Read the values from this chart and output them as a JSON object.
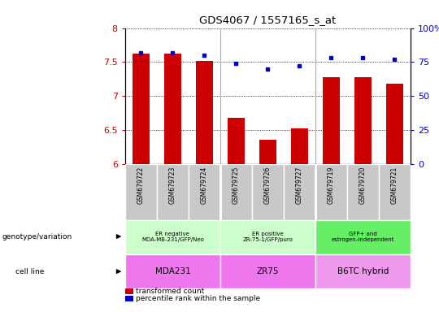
{
  "title": "GDS4067 / 1557165_s_at",
  "samples": [
    "GSM679722",
    "GSM679723",
    "GSM679724",
    "GSM679725",
    "GSM679726",
    "GSM679727",
    "GSM679719",
    "GSM679720",
    "GSM679721"
  ],
  "bar_values": [
    7.62,
    7.62,
    7.52,
    6.68,
    6.35,
    6.52,
    7.28,
    7.28,
    7.18
  ],
  "percentile_values": [
    82,
    82,
    80,
    74,
    70,
    72,
    78,
    78,
    77
  ],
  "ylim_left": [
    6.0,
    8.0
  ],
  "ylim_right": [
    0,
    100
  ],
  "bar_color": "#cc0000",
  "dot_color": "#0000cc",
  "groups": [
    {
      "label": "ER negative\nMDA-MB-231/GFP/Neo",
      "start": 0,
      "end": 3,
      "color": "#ccffcc"
    },
    {
      "label": "ER positive\nZR-75-1/GFP/puro",
      "start": 3,
      "end": 6,
      "color": "#ccffcc"
    },
    {
      "label": "GFP+ and\nestrogen-independent",
      "start": 6,
      "end": 9,
      "color": "#66ee66"
    }
  ],
  "cell_lines": [
    {
      "label": "MDA231",
      "start": 0,
      "end": 3,
      "color": "#ee77ee"
    },
    {
      "label": "ZR75",
      "start": 3,
      "end": 6,
      "color": "#ee77ee"
    },
    {
      "label": "B6TC hybrid",
      "start": 6,
      "end": 9,
      "color": "#ee99ee"
    }
  ],
  "genotype_label": "genotype/variation",
  "cell_line_label": "cell line",
  "legend_bar": "transformed count",
  "legend_dot": "percentile rank within the sample",
  "yticks_left": [
    6.0,
    6.5,
    7.0,
    7.5,
    8.0
  ],
  "yticks_right": [
    0,
    25,
    50,
    75,
    100
  ],
  "bar_width": 0.55,
  "background_color": "#ffffff",
  "tick_label_bg": "#c8c8c8",
  "separator_color": "#aaaaaa",
  "grid_color": "#000000"
}
